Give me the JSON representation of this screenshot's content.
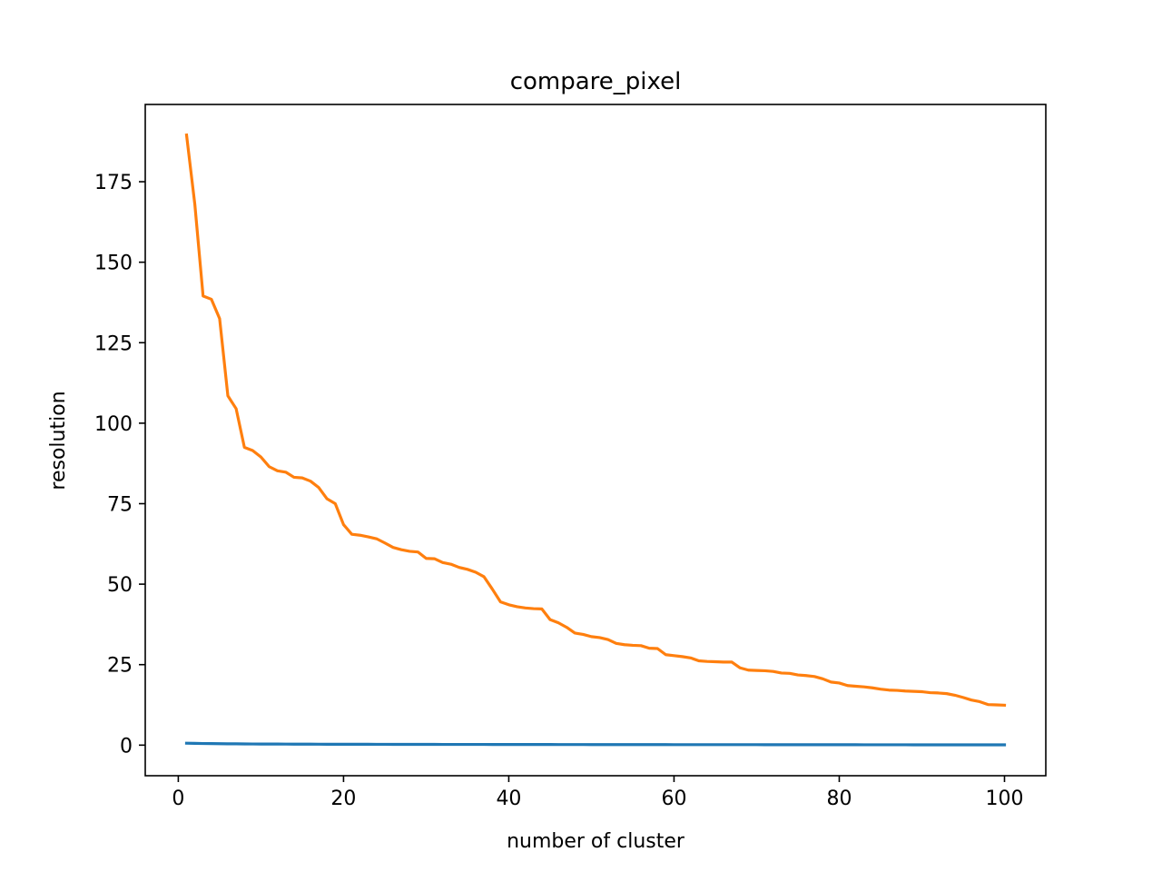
{
  "chart_data": {
    "type": "line",
    "title": "compare_pixel",
    "xlabel": "number of cluster",
    "ylabel": "resolution",
    "xlim": [
      -4,
      105
    ],
    "ylim": [
      -9.5,
      199
    ],
    "xticks": [
      0,
      20,
      40,
      60,
      80,
      100
    ],
    "yticks": [
      0,
      25,
      50,
      75,
      100,
      125,
      150,
      175
    ],
    "grid": false,
    "legend": "none",
    "series": [
      {
        "color": "#1f77b4",
        "x": [
          1,
          2,
          3,
          4,
          5,
          6,
          7,
          8,
          9,
          10,
          11,
          12,
          13,
          14,
          15,
          16,
          17,
          18,
          19,
          20,
          21,
          22,
          23,
          24,
          25,
          26,
          27,
          28,
          29,
          30,
          31,
          32,
          33,
          34,
          35,
          36,
          37,
          38,
          39,
          40,
          41,
          42,
          43,
          44,
          45,
          46,
          47,
          48,
          49,
          50,
          51,
          52,
          53,
          54,
          55,
          56,
          57,
          58,
          59,
          60,
          61,
          62,
          63,
          64,
          65,
          66,
          67,
          68,
          69,
          70,
          71,
          72,
          73,
          74,
          75,
          76,
          77,
          78,
          79,
          80,
          81,
          82,
          83,
          84,
          85,
          86,
          87,
          88,
          89,
          90,
          91,
          92,
          93,
          94,
          95,
          96,
          97,
          98,
          99,
          100
        ],
        "y": [
          0.6,
          0.55,
          0.5,
          0.48,
          0.45,
          0.42,
          0.4,
          0.38,
          0.36,
          0.35,
          0.34,
          0.33,
          0.32,
          0.31,
          0.3,
          0.3,
          0.29,
          0.28,
          0.28,
          0.27,
          0.27,
          0.26,
          0.26,
          0.25,
          0.25,
          0.24,
          0.24,
          0.24,
          0.23,
          0.23,
          0.23,
          0.22,
          0.22,
          0.22,
          0.21,
          0.21,
          0.21,
          0.2,
          0.2,
          0.2,
          0.2,
          0.19,
          0.19,
          0.19,
          0.19,
          0.18,
          0.18,
          0.18,
          0.18,
          0.17,
          0.17,
          0.17,
          0.17,
          0.17,
          0.16,
          0.16,
          0.16,
          0.16,
          0.16,
          0.15,
          0.15,
          0.15,
          0.15,
          0.15,
          0.14,
          0.14,
          0.14,
          0.14,
          0.14,
          0.14,
          0.13,
          0.13,
          0.13,
          0.13,
          0.13,
          0.13,
          0.12,
          0.12,
          0.12,
          0.12,
          0.12,
          0.12,
          0.11,
          0.11,
          0.11,
          0.11,
          0.11,
          0.11,
          0.1,
          0.1,
          0.1,
          0.1,
          0.1,
          0.1,
          0.1,
          0.09,
          0.09,
          0.09,
          0.09,
          0.09
        ]
      },
      {
        "color": "#ff7f0e",
        "x": [
          1,
          2,
          3,
          4,
          5,
          6,
          7,
          8,
          9,
          10,
          11,
          12,
          13,
          14,
          15,
          16,
          17,
          18,
          19,
          20,
          21,
          22,
          23,
          24,
          25,
          26,
          27,
          28,
          29,
          30,
          31,
          32,
          33,
          34,
          35,
          36,
          37,
          38,
          39,
          40,
          41,
          42,
          43,
          44,
          45,
          46,
          47,
          48,
          49,
          50,
          51,
          52,
          53,
          54,
          55,
          56,
          57,
          58,
          59,
          60,
          61,
          62,
          63,
          64,
          65,
          66,
          67,
          68,
          69,
          70,
          71,
          72,
          73,
          74,
          75,
          76,
          77,
          78,
          79,
          80,
          81,
          82,
          83,
          84,
          85,
          86,
          87,
          88,
          89,
          90,
          91,
          92,
          93,
          94,
          95,
          96,
          97,
          98,
          99,
          100
        ],
        "y": [
          189.5,
          168,
          139.5,
          138.5,
          132.5,
          108.5,
          104.5,
          92.5,
          91.5,
          89.5,
          86.5,
          85.2,
          84.8,
          83.2,
          83,
          82,
          80,
          76.5,
          75,
          68.5,
          65.5,
          65.2,
          64.7,
          64.1,
          62.8,
          61.4,
          60.7,
          60.2,
          60,
          58,
          57.9,
          56.7,
          56.2,
          55.2,
          54.6,
          53.7,
          52.3,
          48.5,
          44.5,
          43.6,
          43,
          42.6,
          42.4,
          42.3,
          39,
          38,
          36.6,
          34.8,
          34.4,
          33.7,
          33.4,
          32.8,
          31.6,
          31.2,
          31,
          30.9,
          30.1,
          30,
          28.1,
          27.8,
          27.5,
          27.1,
          26.2,
          26,
          25.9,
          25.8,
          25.8,
          24,
          23.3,
          23.2,
          23.1,
          22.9,
          22.4,
          22.3,
          21.8,
          21.6,
          21.3,
          20.6,
          19.6,
          19.3,
          18.5,
          18.3,
          18.1,
          17.8,
          17.4,
          17.1,
          17,
          16.8,
          16.7,
          16.6,
          16.3,
          16.2,
          16,
          15.5,
          14.8,
          14,
          13.5,
          12.6,
          12.5,
          12.4
        ]
      }
    ]
  }
}
